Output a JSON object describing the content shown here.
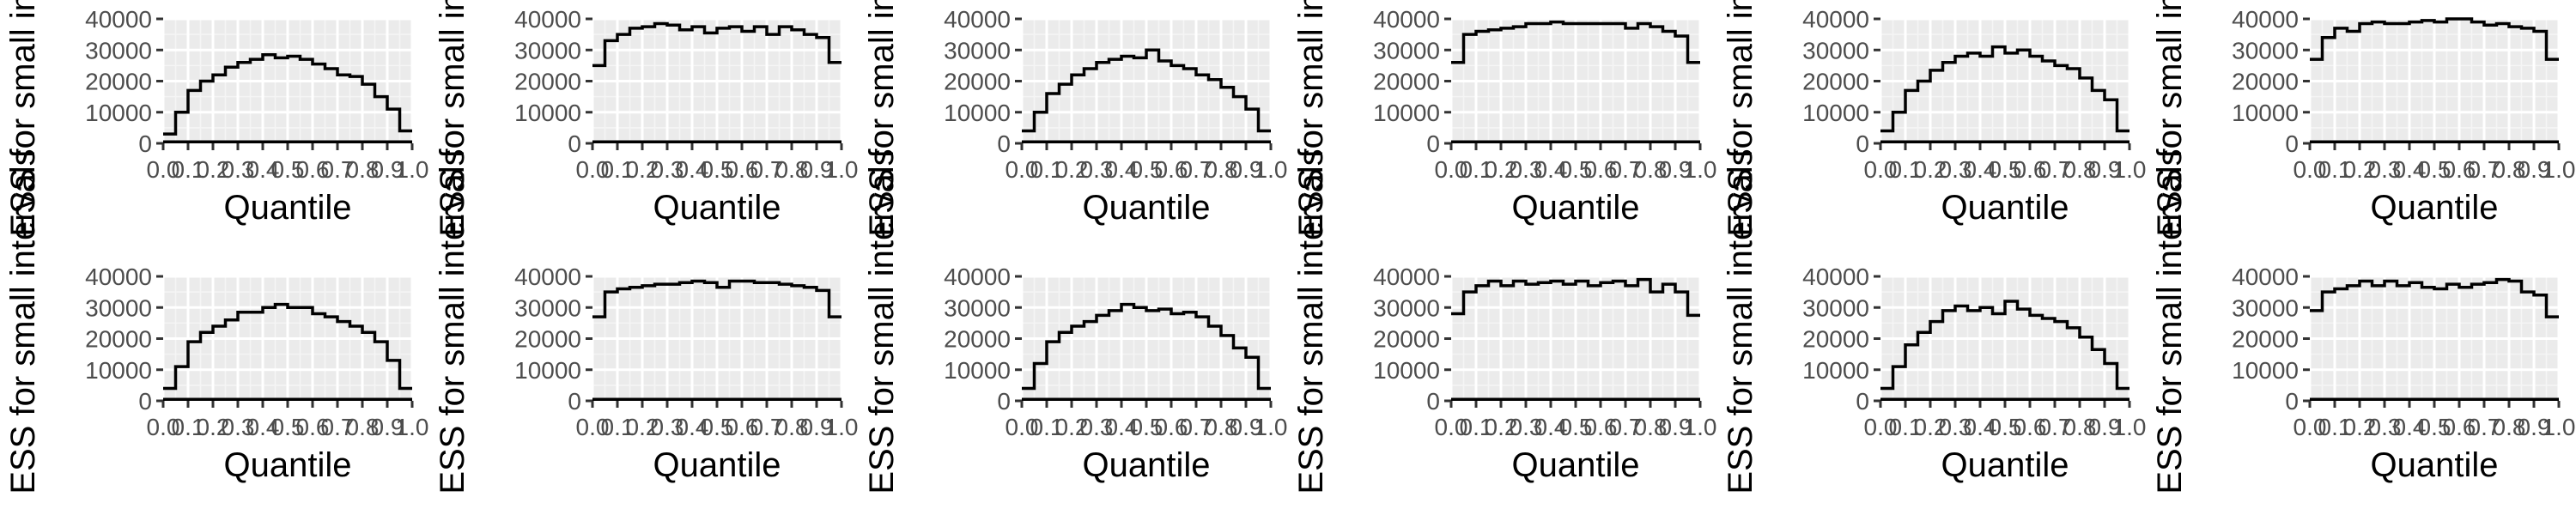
{
  "chart_data": [
    {
      "type": "line",
      "step": true,
      "grid": true,
      "xlabel": "Quantile",
      "ylabel": "ESS for small intervals",
      "ylim": [
        0,
        40000
      ],
      "yticks": [
        0,
        10000,
        20000,
        30000,
        40000
      ],
      "xlim": [
        0,
        1
      ],
      "xticks": [
        0.0,
        0.1,
        0.2,
        0.3,
        0.4,
        0.5,
        0.6,
        0.7,
        0.8,
        0.9,
        1.0
      ],
      "series": [
        {
          "x": [
            0.0,
            0.05,
            0.1,
            0.15,
            0.2,
            0.25,
            0.3,
            0.35,
            0.4,
            0.45,
            0.5,
            0.55,
            0.6,
            0.65,
            0.7,
            0.75,
            0.8,
            0.85,
            0.9,
            0.95,
            1.0
          ],
          "values": [
            3000,
            10000,
            17000,
            20000,
            22000,
            24500,
            26000,
            27000,
            28500,
            27500,
            28000,
            27000,
            25500,
            24000,
            22000,
            21500,
            19000,
            15000,
            11000,
            4000,
            4000
          ]
        },
        {
          "x": [
            0.0,
            1.0
          ],
          "values": [
            500,
            500
          ]
        }
      ]
    },
    {
      "type": "line",
      "step": true,
      "grid": true,
      "xlabel": "Quantile",
      "ylabel": "ESS for small intervals",
      "ylim": [
        0,
        40000
      ],
      "yticks": [
        0,
        10000,
        20000,
        30000,
        40000
      ],
      "xlim": [
        0,
        1
      ],
      "xticks": [
        0.0,
        0.1,
        0.2,
        0.3,
        0.4,
        0.5,
        0.6,
        0.7,
        0.8,
        0.9,
        1.0
      ],
      "series": [
        {
          "x": [
            0.0,
            0.05,
            0.1,
            0.15,
            0.2,
            0.25,
            0.3,
            0.35,
            0.4,
            0.45,
            0.5,
            0.55,
            0.6,
            0.65,
            0.7,
            0.75,
            0.8,
            0.85,
            0.9,
            0.95,
            1.0
          ],
          "values": [
            25000,
            33000,
            35000,
            37000,
            37500,
            38500,
            38000,
            36500,
            37500,
            35500,
            37000,
            37500,
            36000,
            37500,
            35000,
            37500,
            36500,
            35000,
            34000,
            26000,
            26000
          ]
        },
        {
          "x": [
            0.0,
            1.0
          ],
          "values": [
            500,
            500
          ]
        }
      ]
    },
    {
      "type": "line",
      "step": true,
      "grid": true,
      "xlabel": "Quantile",
      "ylabel": "ESS for small intervals",
      "ylim": [
        0,
        40000
      ],
      "yticks": [
        0,
        10000,
        20000,
        30000,
        40000
      ],
      "xlim": [
        0,
        1
      ],
      "xticks": [
        0.0,
        0.1,
        0.2,
        0.3,
        0.4,
        0.5,
        0.6,
        0.7,
        0.8,
        0.9,
        1.0
      ],
      "series": [
        {
          "x": [
            0.0,
            0.05,
            0.1,
            0.15,
            0.2,
            0.25,
            0.3,
            0.35,
            0.4,
            0.45,
            0.5,
            0.55,
            0.6,
            0.65,
            0.7,
            0.75,
            0.8,
            0.85,
            0.9,
            0.95,
            1.0
          ],
          "values": [
            4000,
            10000,
            16000,
            19000,
            22000,
            24000,
            26000,
            27000,
            28000,
            27500,
            30000,
            26500,
            25000,
            24000,
            22000,
            20500,
            18000,
            15000,
            11000,
            4000,
            4000
          ]
        },
        {
          "x": [
            0.0,
            1.0
          ],
          "values": [
            500,
            500
          ]
        }
      ]
    },
    {
      "type": "line",
      "step": true,
      "grid": true,
      "xlabel": "Quantile",
      "ylabel": "ESS for small intervals",
      "ylim": [
        0,
        40000
      ],
      "yticks": [
        0,
        10000,
        20000,
        30000,
        40000
      ],
      "xlim": [
        0,
        1
      ],
      "xticks": [
        0.0,
        0.1,
        0.2,
        0.3,
        0.4,
        0.5,
        0.6,
        0.7,
        0.8,
        0.9,
        1.0
      ],
      "series": [
        {
          "x": [
            0.0,
            0.05,
            0.1,
            0.15,
            0.2,
            0.25,
            0.3,
            0.35,
            0.4,
            0.45,
            0.5,
            0.55,
            0.6,
            0.65,
            0.7,
            0.75,
            0.8,
            0.85,
            0.9,
            0.95,
            1.0
          ],
          "values": [
            26000,
            35000,
            36000,
            36500,
            37000,
            37500,
            38500,
            38500,
            39000,
            38500,
            38500,
            38500,
            38500,
            38500,
            37000,
            38500,
            37500,
            36000,
            34500,
            26000,
            26000
          ]
        },
        {
          "x": [
            0.0,
            1.0
          ],
          "values": [
            500,
            500
          ]
        }
      ]
    },
    {
      "type": "line",
      "step": true,
      "grid": true,
      "xlabel": "Quantile",
      "ylabel": "ESS for small intervals",
      "ylim": [
        0,
        40000
      ],
      "yticks": [
        0,
        10000,
        20000,
        30000,
        40000
      ],
      "xlim": [
        0,
        1
      ],
      "xticks": [
        0.0,
        0.1,
        0.2,
        0.3,
        0.4,
        0.5,
        0.6,
        0.7,
        0.8,
        0.9,
        1.0
      ],
      "series": [
        {
          "x": [
            0.0,
            0.05,
            0.1,
            0.15,
            0.2,
            0.25,
            0.3,
            0.35,
            0.4,
            0.45,
            0.5,
            0.55,
            0.6,
            0.65,
            0.7,
            0.75,
            0.8,
            0.85,
            0.9,
            0.95,
            1.0
          ],
          "values": [
            4000,
            10000,
            17000,
            20000,
            23500,
            26000,
            28000,
            29000,
            28000,
            31000,
            29000,
            30000,
            28000,
            26500,
            25000,
            24000,
            21000,
            17000,
            14000,
            4000,
            4000
          ]
        },
        {
          "x": [
            0.0,
            1.0
          ],
          "values": [
            500,
            500
          ]
        }
      ]
    },
    {
      "type": "line",
      "step": true,
      "grid": true,
      "xlabel": "Quantile",
      "ylabel": "ESS for small intervals",
      "ylim": [
        0,
        40000
      ],
      "yticks": [
        0,
        10000,
        20000,
        30000,
        40000
      ],
      "xlim": [
        0,
        1
      ],
      "xticks": [
        0.0,
        0.1,
        0.2,
        0.3,
        0.4,
        0.5,
        0.6,
        0.7,
        0.8,
        0.9,
        1.0
      ],
      "series": [
        {
          "x": [
            0.0,
            0.05,
            0.1,
            0.15,
            0.2,
            0.25,
            0.3,
            0.35,
            0.4,
            0.45,
            0.5,
            0.55,
            0.6,
            0.65,
            0.7,
            0.75,
            0.8,
            0.85,
            0.9,
            0.95,
            1.0
          ],
          "values": [
            27000,
            34000,
            37000,
            36000,
            38500,
            39000,
            38500,
            38500,
            39000,
            39500,
            39000,
            40000,
            40000,
            39000,
            38000,
            38500,
            37500,
            37000,
            36000,
            27000,
            27000
          ]
        },
        {
          "x": [
            0.0,
            1.0
          ],
          "values": [
            500,
            500
          ]
        }
      ]
    },
    {
      "type": "line",
      "step": true,
      "grid": true,
      "xlabel": "Quantile",
      "ylabel": "ESS for small intervals",
      "ylim": [
        0,
        40000
      ],
      "yticks": [
        0,
        10000,
        20000,
        30000,
        40000
      ],
      "xlim": [
        0,
        1
      ],
      "xticks": [
        0.0,
        0.1,
        0.2,
        0.3,
        0.4,
        0.5,
        0.6,
        0.7,
        0.8,
        0.9,
        1.0
      ],
      "series": [
        {
          "x": [
            0.0,
            0.05,
            0.1,
            0.15,
            0.2,
            0.25,
            0.3,
            0.35,
            0.4,
            0.45,
            0.5,
            0.55,
            0.6,
            0.65,
            0.7,
            0.75,
            0.8,
            0.85,
            0.9,
            0.95,
            1.0
          ],
          "values": [
            4000,
            11000,
            19000,
            22000,
            24000,
            26000,
            28500,
            28500,
            30000,
            31000,
            30000,
            30000,
            28000,
            27000,
            25500,
            24000,
            22000,
            19000,
            13000,
            4000,
            4000
          ]
        },
        {
          "x": [
            0.0,
            1.0
          ],
          "values": [
            500,
            500
          ]
        }
      ]
    },
    {
      "type": "line",
      "step": true,
      "grid": true,
      "xlabel": "Quantile",
      "ylabel": "ESS for small intervals",
      "ylim": [
        0,
        40000
      ],
      "yticks": [
        0,
        10000,
        20000,
        30000,
        40000
      ],
      "xlim": [
        0,
        1
      ],
      "xticks": [
        0.0,
        0.1,
        0.2,
        0.3,
        0.4,
        0.5,
        0.6,
        0.7,
        0.8,
        0.9,
        1.0
      ],
      "series": [
        {
          "x": [
            0.0,
            0.05,
            0.1,
            0.15,
            0.2,
            0.25,
            0.3,
            0.35,
            0.4,
            0.45,
            0.5,
            0.55,
            0.6,
            0.65,
            0.7,
            0.75,
            0.8,
            0.85,
            0.9,
            0.95,
            1.0
          ],
          "values": [
            27000,
            35000,
            36000,
            36500,
            37000,
            37500,
            37500,
            38000,
            38500,
            38000,
            36500,
            38500,
            38500,
            38000,
            38000,
            37500,
            37000,
            36500,
            35500,
            27000,
            27000
          ]
        },
        {
          "x": [
            0.0,
            1.0
          ],
          "values": [
            500,
            500
          ]
        }
      ]
    },
    {
      "type": "line",
      "step": true,
      "grid": true,
      "xlabel": "Quantile",
      "ylabel": "ESS for small intervals",
      "ylim": [
        0,
        40000
      ],
      "yticks": [
        0,
        10000,
        20000,
        30000,
        40000
      ],
      "xlim": [
        0,
        1
      ],
      "xticks": [
        0.0,
        0.1,
        0.2,
        0.3,
        0.4,
        0.5,
        0.6,
        0.7,
        0.8,
        0.9,
        1.0
      ],
      "series": [
        {
          "x": [
            0.0,
            0.05,
            0.1,
            0.15,
            0.2,
            0.25,
            0.3,
            0.35,
            0.4,
            0.45,
            0.5,
            0.55,
            0.6,
            0.65,
            0.7,
            0.75,
            0.8,
            0.85,
            0.9,
            0.95,
            1.0
          ],
          "values": [
            4000,
            12000,
            19000,
            22000,
            24000,
            25500,
            27500,
            29000,
            31000,
            30000,
            29000,
            29500,
            28000,
            28500,
            27000,
            24000,
            21000,
            17000,
            14000,
            4000,
            4000
          ]
        },
        {
          "x": [
            0.0,
            1.0
          ],
          "values": [
            500,
            500
          ]
        }
      ]
    },
    {
      "type": "line",
      "step": true,
      "grid": true,
      "xlabel": "Quantile",
      "ylabel": "ESS for small intervals",
      "ylim": [
        0,
        40000
      ],
      "yticks": [
        0,
        10000,
        20000,
        30000,
        40000
      ],
      "xlim": [
        0,
        1
      ],
      "xticks": [
        0.0,
        0.1,
        0.2,
        0.3,
        0.4,
        0.5,
        0.6,
        0.7,
        0.8,
        0.9,
        1.0
      ],
      "series": [
        {
          "x": [
            0.0,
            0.05,
            0.1,
            0.15,
            0.2,
            0.25,
            0.3,
            0.35,
            0.4,
            0.45,
            0.5,
            0.55,
            0.6,
            0.65,
            0.7,
            0.75,
            0.8,
            0.85,
            0.9,
            0.95,
            1.0
          ],
          "values": [
            28000,
            35000,
            37000,
            38500,
            37000,
            38500,
            37500,
            38000,
            38500,
            37500,
            38500,
            37000,
            38000,
            38500,
            37000,
            39000,
            35000,
            37500,
            35000,
            27500,
            27500
          ]
        },
        {
          "x": [
            0.0,
            1.0
          ],
          "values": [
            500,
            500
          ]
        }
      ]
    },
    {
      "type": "line",
      "step": true,
      "grid": true,
      "xlabel": "Quantile",
      "ylabel": "ESS for small intervals",
      "ylim": [
        0,
        40000
      ],
      "yticks": [
        0,
        10000,
        20000,
        30000,
        40000
      ],
      "xlim": [
        0,
        1
      ],
      "xticks": [
        0.0,
        0.1,
        0.2,
        0.3,
        0.4,
        0.5,
        0.6,
        0.7,
        0.8,
        0.9,
        1.0
      ],
      "series": [
        {
          "x": [
            0.0,
            0.05,
            0.1,
            0.15,
            0.2,
            0.25,
            0.3,
            0.35,
            0.4,
            0.45,
            0.5,
            0.55,
            0.6,
            0.65,
            0.7,
            0.75,
            0.8,
            0.85,
            0.9,
            0.95,
            1.0
          ],
          "values": [
            4000,
            11000,
            18000,
            22000,
            25500,
            29000,
            30500,
            29000,
            30000,
            28000,
            32000,
            29500,
            27500,
            26500,
            25500,
            23500,
            20500,
            16500,
            12000,
            4000,
            4000
          ]
        },
        {
          "x": [
            0.0,
            1.0
          ],
          "values": [
            500,
            500
          ]
        }
      ]
    },
    {
      "type": "line",
      "step": true,
      "grid": true,
      "xlabel": "Quantile",
      "ylabel": "ESS for small intervals",
      "ylim": [
        0,
        40000
      ],
      "yticks": [
        0,
        10000,
        20000,
        30000,
        40000
      ],
      "xlim": [
        0,
        1
      ],
      "xticks": [
        0.0,
        0.1,
        0.2,
        0.3,
        0.4,
        0.5,
        0.6,
        0.7,
        0.8,
        0.9,
        1.0
      ],
      "series": [
        {
          "x": [
            0.0,
            0.05,
            0.1,
            0.15,
            0.2,
            0.25,
            0.3,
            0.35,
            0.4,
            0.45,
            0.5,
            0.55,
            0.6,
            0.65,
            0.7,
            0.75,
            0.8,
            0.85,
            0.9,
            0.95,
            1.0
          ],
          "values": [
            29000,
            35000,
            36000,
            37000,
            38500,
            37000,
            38500,
            37000,
            38000,
            36500,
            36000,
            37500,
            36500,
            37500,
            38000,
            39000,
            38500,
            35000,
            34000,
            27000,
            27000
          ]
        },
        {
          "x": [
            0.0,
            1.0
          ],
          "values": [
            500,
            500
          ]
        }
      ]
    }
  ]
}
